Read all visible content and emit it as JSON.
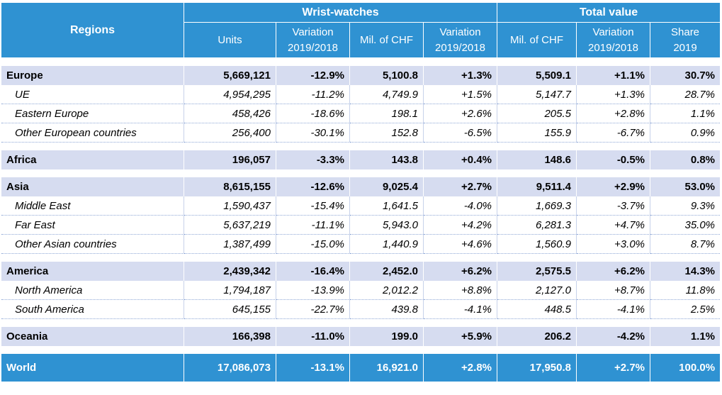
{
  "header": {
    "regions_label": "Regions",
    "group_wrist": "Wrist-watches",
    "group_total": "Total value",
    "units": "Units",
    "variation_line1": "Variation",
    "variation_line2": "2019/2018",
    "mil_chf": "Mil. of CHF",
    "share_line1": "Share",
    "share_line2": "2019"
  },
  "blocks": [
    {
      "region": [
        "Europe",
        "5,669,121",
        "-12.9%",
        "5,100.8",
        "+1.3%",
        "5,509.1",
        "+1.1%",
        "30.7%"
      ],
      "subs": [
        [
          "UE",
          "4,954,295",
          "-11.2%",
          "4,749.9",
          "+1.5%",
          "5,147.7",
          "+1.3%",
          "28.7%"
        ],
        [
          "Eastern Europe",
          "458,426",
          "-18.6%",
          "198.1",
          "+2.6%",
          "205.5",
          "+2.8%",
          "1.1%"
        ],
        [
          "Other European countries",
          "256,400",
          "-30.1%",
          "152.8",
          "-6.5%",
          "155.9",
          "-6.7%",
          "0.9%"
        ]
      ]
    },
    {
      "region": [
        "Africa",
        "196,057",
        "-3.3%",
        "143.8",
        "+0.4%",
        "148.6",
        "-0.5%",
        "0.8%"
      ],
      "subs": []
    },
    {
      "region": [
        "Asia",
        "8,615,155",
        "-12.6%",
        "9,025.4",
        "+2.7%",
        "9,511.4",
        "+2.9%",
        "53.0%"
      ],
      "subs": [
        [
          "Middle East",
          "1,590,437",
          "-15.4%",
          "1,641.5",
          "-4.0%",
          "1,669.3",
          "-3.7%",
          "9.3%"
        ],
        [
          "Far East",
          "5,637,219",
          "-11.1%",
          "5,943.0",
          "+4.2%",
          "6,281.3",
          "+4.7%",
          "35.0%"
        ],
        [
          "Other Asian countries",
          "1,387,499",
          "-15.0%",
          "1,440.9",
          "+4.6%",
          "1,560.9",
          "+3.0%",
          "8.7%"
        ]
      ]
    },
    {
      "region": [
        "America",
        "2,439,342",
        "-16.4%",
        "2,452.0",
        "+6.2%",
        "2,575.5",
        "+6.2%",
        "14.3%"
      ],
      "subs": [
        [
          "North America",
          "1,794,187",
          "-13.9%",
          "2,012.2",
          "+8.8%",
          "2,127.0",
          "+8.7%",
          "11.8%"
        ],
        [
          "South America",
          "645,155",
          "-22.7%",
          "439.8",
          "-4.1%",
          "448.5",
          "-4.1%",
          "2.5%"
        ]
      ]
    },
    {
      "region": [
        "Oceania",
        "166,398",
        "-11.0%",
        "199.0",
        "+5.9%",
        "206.2",
        "-4.2%",
        "1.1%"
      ],
      "subs": []
    }
  ],
  "world": [
    "World",
    "17,086,073",
    "-13.1%",
    "16,921.0",
    "+2.8%",
    "17,950.8",
    "+2.7%",
    "100.0%"
  ],
  "colors": {
    "header_blue": "#2f92d2",
    "region_band": "#d6dcf0",
    "divider_dots": "#8ea7d6"
  }
}
